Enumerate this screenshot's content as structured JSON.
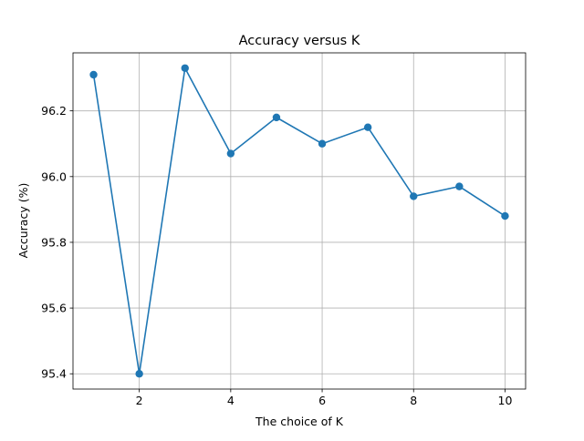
{
  "chart_data": {
    "type": "line",
    "title": "Accuracy versus K",
    "xlabel": "The choice of K",
    "ylabel": "Accuracy (%)",
    "x": [
      1,
      2,
      3,
      4,
      5,
      6,
      7,
      8,
      9,
      10
    ],
    "series": [
      {
        "values": [
          96.31,
          95.4,
          96.33,
          96.07,
          96.18,
          96.1,
          96.15,
          95.94,
          95.97,
          95.88
        ]
      }
    ],
    "xlim": [
      0.55,
      10.45
    ],
    "ylim": [
      95.3535,
      96.3765
    ],
    "xticks": [
      2,
      4,
      6,
      8,
      10
    ],
    "xtick_labels": [
      "2",
      "4",
      "6",
      "8",
      "10"
    ],
    "yticks": [
      95.4,
      95.6,
      95.8,
      96.0,
      96.2
    ],
    "ytick_labels": [
      "95.4",
      "95.6",
      "95.8",
      "96.0",
      "96.2"
    ],
    "grid": true,
    "marker": "circle",
    "line_color": "#1f77b4",
    "grid_color": "#b0b0b0"
  }
}
